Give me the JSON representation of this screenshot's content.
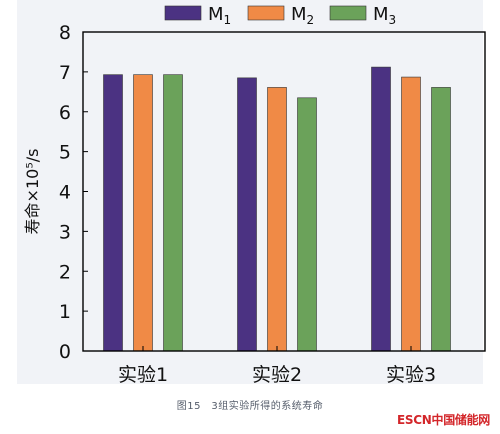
{
  "chart_data": {
    "type": "bar",
    "categories": [
      "实验1",
      "实验2",
      "实验3"
    ],
    "series": [
      {
        "name": "M1",
        "name_base": "M",
        "name_sub": "1",
        "color": "#4b3282",
        "values": [
          6.93,
          6.85,
          7.12
        ]
      },
      {
        "name": "M2",
        "name_base": "M",
        "name_sub": "2",
        "color": "#f08a46",
        "values": [
          6.93,
          6.61,
          6.87
        ]
      },
      {
        "name": "M3",
        "name_base": "M",
        "name_sub": "3",
        "color": "#6ba25a",
        "values": [
          6.93,
          6.35,
          6.61
        ]
      }
    ],
    "ylabel": "寿命×10⁵/s",
    "ylim": [
      0,
      8
    ],
    "yticks": [
      0,
      1,
      2,
      3,
      4,
      5,
      6,
      7,
      8
    ],
    "grid": false,
    "legend_position": "top"
  },
  "caption": "图15　3组实验所得的系统寿命",
  "brand": "ESCN中国储能网"
}
